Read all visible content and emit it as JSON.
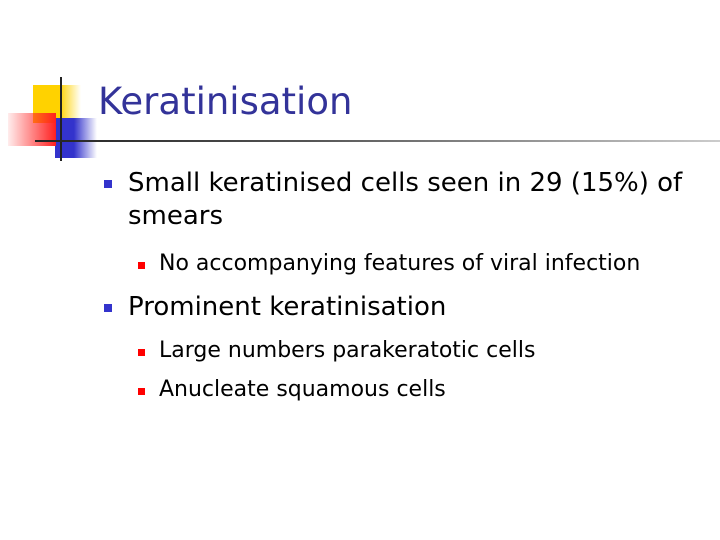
{
  "slide": {
    "title": "Keratinisation",
    "bullets": [
      {
        "text": "Small keratinised cells seen in 29 (15%) of smears",
        "sub": [
          "No accompanying features of viral infection"
        ]
      },
      {
        "text": "Prominent keratinisation",
        "sub": [
          "Large numbers parakeratotic cells",
          "Anucleate squamous cells"
        ]
      }
    ]
  },
  "colors": {
    "title": "#333399",
    "bullet_l1": "#3333cc",
    "bullet_l2": "#ff0000"
  }
}
